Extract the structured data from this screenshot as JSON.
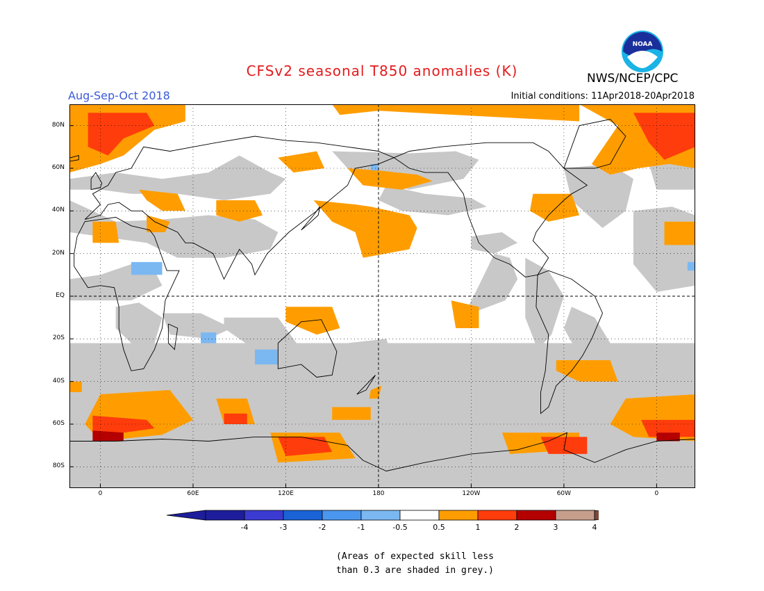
{
  "title": "CFSv2 seasonal T850 anomalies (K)",
  "season": "Aug-Sep-Oct 2018",
  "initial_conditions": "Initial conditions: 11Apr2018-20Apr2018",
  "agency": "NWS/NCEP/CPC",
  "logo_text": "NOAA",
  "map": {
    "lat_labels": [
      "80N",
      "60N",
      "40N",
      "20N",
      "EQ",
      "20S",
      "40S",
      "60S",
      "80S"
    ],
    "lon_labels": [
      "0",
      "60E",
      "120E",
      "180",
      "120W",
      "60W",
      "0"
    ],
    "lon_range": [
      -20,
      385
    ],
    "lat_range": [
      -90,
      90
    ],
    "grid": "dotted",
    "colors": {
      "n4": "#1e1e9c",
      "n3": "#3b3bd1",
      "n2": "#1a63d6",
      "n1": "#4b97ef",
      "n05": "#7bb8f2",
      "neutral": "#ffffff",
      "p05": "#ff9d00",
      "p1": "#ff3c0b",
      "p2": "#b40000",
      "p3": "#c79d8c",
      "p4": "#7a4a3a",
      "low_skill": "#c8c8c8",
      "coastline": "#000000"
    }
  },
  "legend": {
    "labels": [
      "-4",
      "-3",
      "-2",
      "-1",
      "-0.5",
      "0.5",
      "1",
      "2",
      "3",
      "4"
    ],
    "colors": [
      "#1e1e9c",
      "#3b3bd1",
      "#1a63d6",
      "#4b97ef",
      "#7bb8f2",
      "#ffffff",
      "#ff9d00",
      "#ff3c0b",
      "#b40000",
      "#c79d8c"
    ],
    "low_end_color": "#1e1e9c",
    "high_end_color": "#7a4a3a"
  },
  "footnote": {
    "line1": "(Areas of expected skill less",
    "line2": "than 0.3 are shaded in grey.)"
  }
}
